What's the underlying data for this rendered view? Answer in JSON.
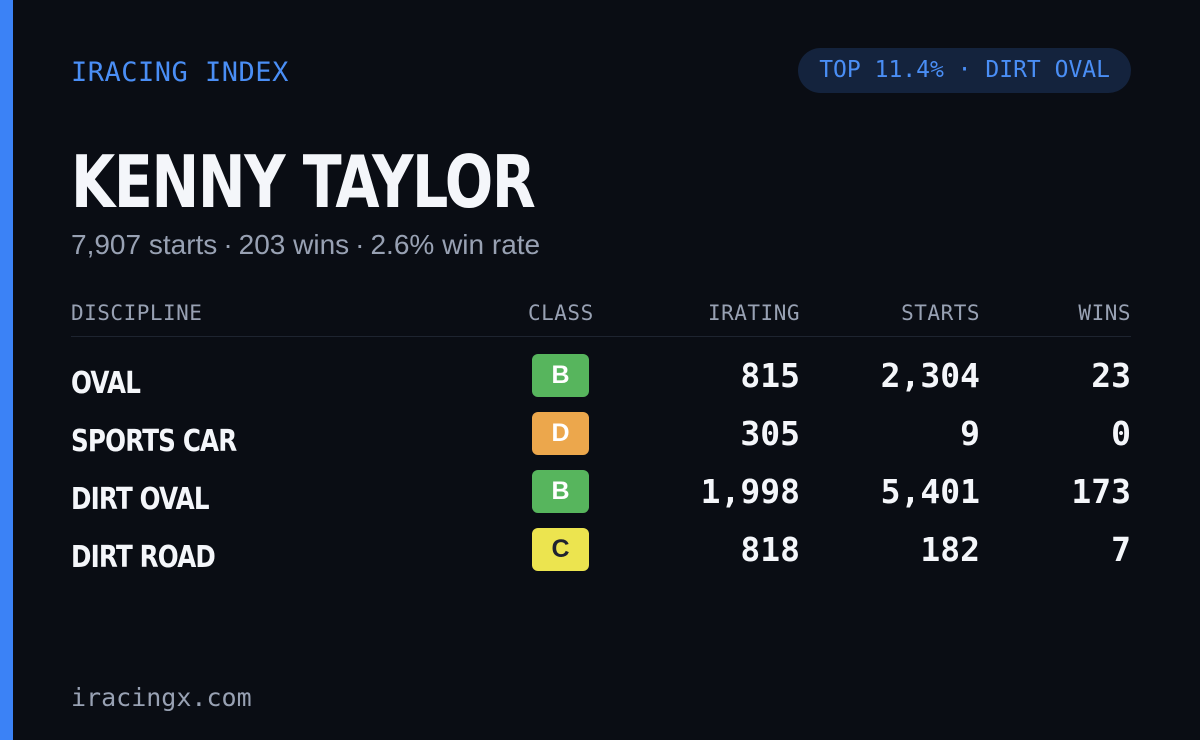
{
  "brand": {
    "label": "IRACING INDEX"
  },
  "rank_badge": {
    "label": "TOP 11.4% · DIRT OVAL"
  },
  "driver": {
    "name": "KENNY TAYLOR"
  },
  "summary": {
    "starts": "7,907 starts",
    "wins": "203 wins",
    "win_rate": "2.6% win rate",
    "separator": "·"
  },
  "table": {
    "headers": {
      "discipline": "DISCIPLINE",
      "class": "CLASS",
      "irating": "IRATING",
      "starts": "STARTS",
      "wins": "WINS"
    },
    "rows": [
      {
        "discipline": "OVAL",
        "class": "B",
        "class_color": "#57b55d",
        "class_text_color": "#ffffff",
        "irating": "815",
        "starts": "2,304",
        "wins": "23"
      },
      {
        "discipline": "SPORTS CAR",
        "class": "D",
        "class_color": "#eca74c",
        "class_text_color": "#ffffff",
        "irating": "305",
        "starts": "9",
        "wins": "0"
      },
      {
        "discipline": "DIRT OVAL",
        "class": "B",
        "class_color": "#57b55d",
        "class_text_color": "#ffffff",
        "irating": "1,998",
        "starts": "5,401",
        "wins": "173"
      },
      {
        "discipline": "DIRT ROAD",
        "class": "C",
        "class_color": "#ece44f",
        "class_text_color": "#1f2230",
        "irating": "818",
        "starts": "182",
        "wins": "7"
      }
    ]
  },
  "footer": {
    "url": "iracingx.com"
  },
  "colors": {
    "background": "#0a0d14",
    "accent": "#3b82f6",
    "muted_text": "#98a1b3",
    "primary_text": "#f4f6fa"
  }
}
